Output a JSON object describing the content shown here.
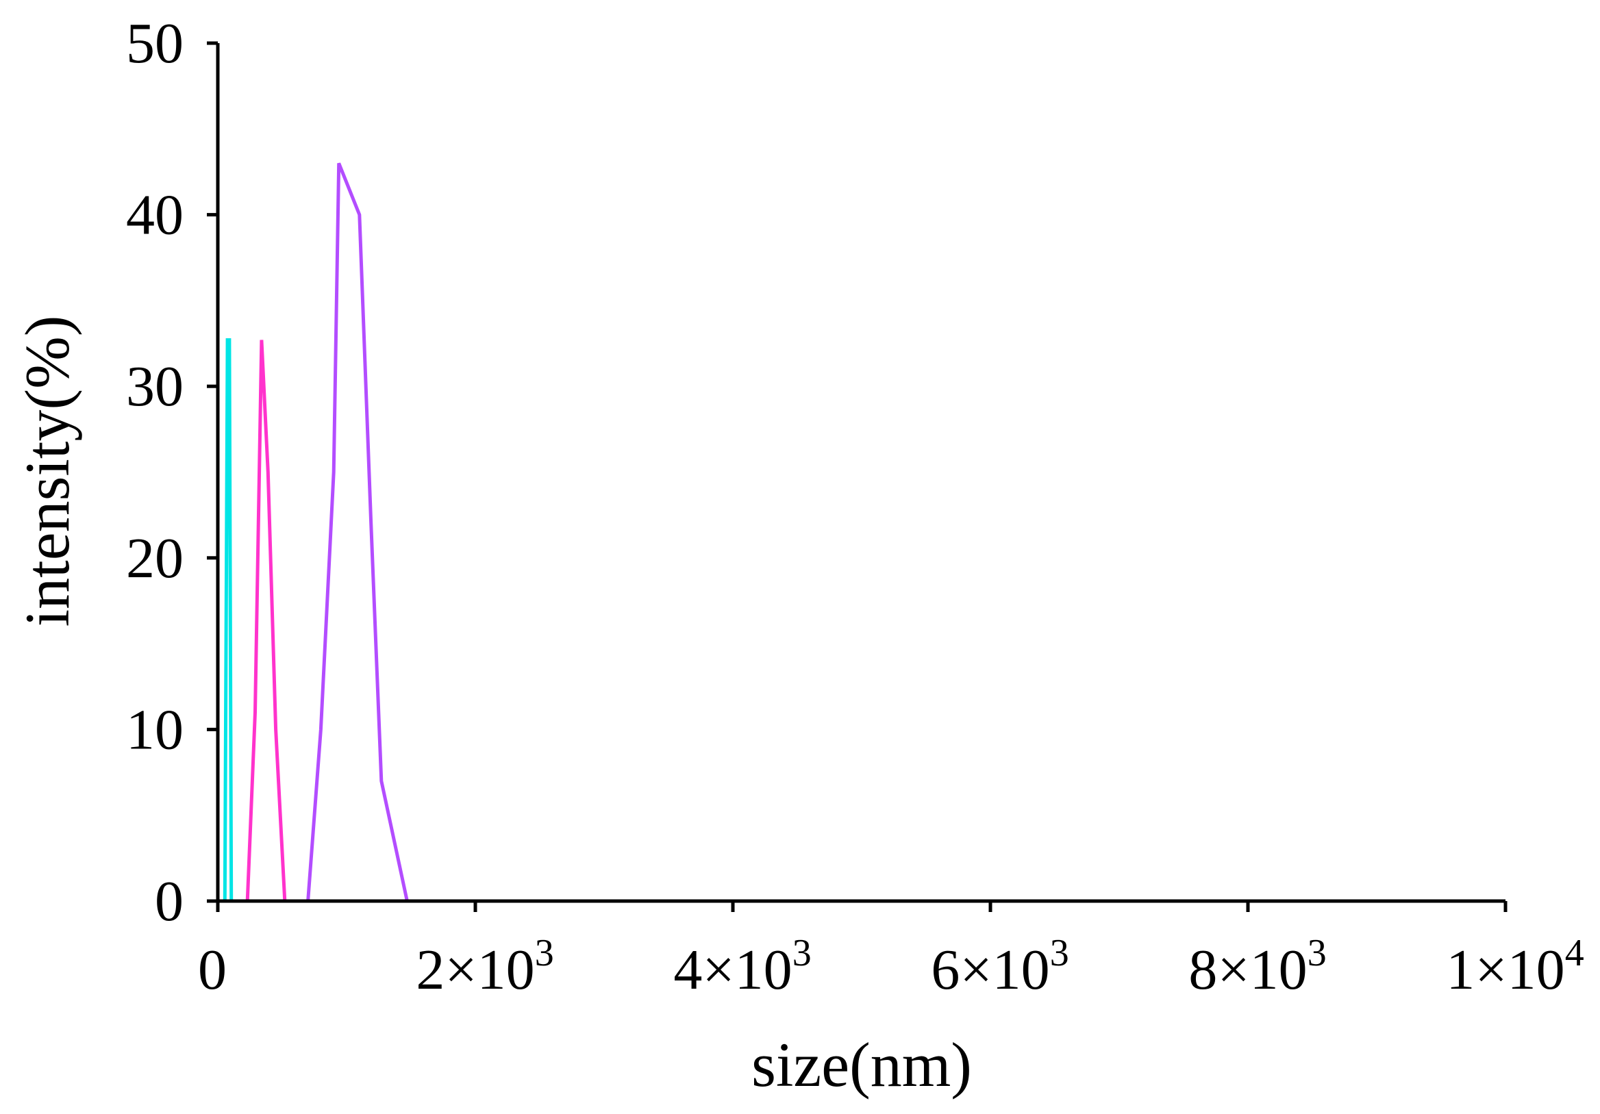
{
  "chart_data": {
    "type": "line",
    "xlabel": "size(nm)",
    "ylabel": "intensity(%)",
    "xlim": [
      0,
      10000
    ],
    "ylim": [
      0,
      50
    ],
    "grid": false,
    "legend": "none",
    "x_ticks": [
      {
        "value": 0,
        "label": "0"
      },
      {
        "value": 2000,
        "mantissa": "2×10",
        "exponent": "3"
      },
      {
        "value": 4000,
        "mantissa": "4×10",
        "exponent": "3"
      },
      {
        "value": 6000,
        "mantissa": "6×10",
        "exponent": "3"
      },
      {
        "value": 8000,
        "mantissa": "8×10",
        "exponent": "3"
      },
      {
        "value": 10000,
        "mantissa": "1×10",
        "exponent": "4"
      }
    ],
    "y_ticks": [
      {
        "value": 0,
        "label": "0"
      },
      {
        "value": 10,
        "label": "10"
      },
      {
        "value": 20,
        "label": "20"
      },
      {
        "value": 30,
        "label": "30"
      },
      {
        "value": 40,
        "label": "40"
      },
      {
        "value": 50,
        "label": "50"
      }
    ],
    "series": [
      {
        "color": "#00e5e5",
        "points": [
          [
            0,
            0
          ],
          [
            40,
            0
          ],
          [
            55,
            0
          ],
          [
            75,
            32.7
          ],
          [
            90,
            32.7
          ],
          [
            105,
            0
          ],
          [
            130,
            0
          ]
        ]
      },
      {
        "color": "#ff33cc",
        "points": [
          [
            0,
            0
          ],
          [
            200,
            0
          ],
          [
            230,
            0
          ],
          [
            290,
            11
          ],
          [
            340,
            32.7
          ],
          [
            390,
            25
          ],
          [
            450,
            10
          ],
          [
            520,
            0
          ],
          [
            600,
            0
          ]
        ]
      },
      {
        "color": "#b34dff",
        "points": [
          [
            0,
            0
          ],
          [
            700,
            0
          ],
          [
            800,
            10
          ],
          [
            900,
            25
          ],
          [
            940,
            43
          ],
          [
            1100,
            40
          ],
          [
            1190,
            22
          ],
          [
            1270,
            7
          ],
          [
            1470,
            0
          ],
          [
            8650,
            0
          ]
        ]
      }
    ]
  }
}
